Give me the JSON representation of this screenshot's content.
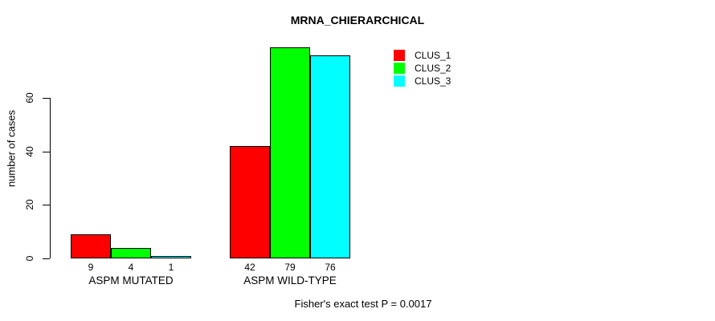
{
  "chart_data": {
    "type": "bar",
    "title": "MRNA_CHIERARCHICAL",
    "ylabel": "number of cases",
    "xlabel": "",
    "categories": [
      "ASPM MUTATED",
      "ASPM WILD-TYPE"
    ],
    "series": [
      {
        "name": "CLUS_1",
        "color": "#ff0000",
        "values": [
          9,
          42
        ]
      },
      {
        "name": "CLUS_2",
        "color": "#00ff00",
        "values": [
          4,
          79
        ]
      },
      {
        "name": "CLUS_3",
        "color": "#00ffff",
        "values": [
          1,
          76
        ]
      }
    ],
    "bar_value_labels": [
      [
        "9",
        "4",
        "1"
      ],
      [
        "42",
        "79",
        "76"
      ]
    ],
    "yticks": [
      "0",
      "20",
      "40",
      "60"
    ],
    "ylim": [
      0,
      80
    ],
    "grid": false,
    "legend_position": "top-right",
    "legend": [
      {
        "label": "CLUS_1",
        "color": "#ff0000"
      },
      {
        "label": "CLUS_2",
        "color": "#00ff00"
      },
      {
        "label": "CLUS_3",
        "color": "#00ffff"
      }
    ],
    "annotation": "Fisher's exact test P = 0.0017"
  }
}
